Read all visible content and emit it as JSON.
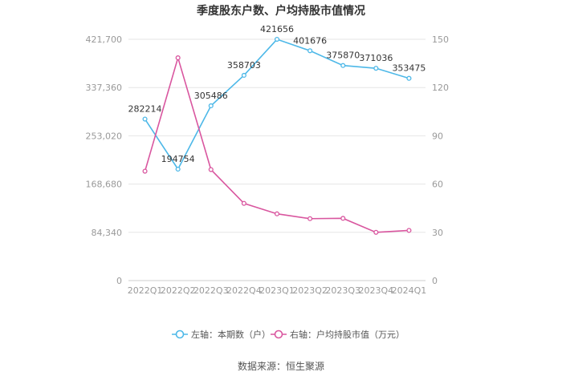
{
  "chart_data": {
    "type": "line",
    "title": "季度股东户数、户均持股市值情况",
    "categories": [
      "2022Q1",
      "2022Q2",
      "2022Q3",
      "2022Q4",
      "2023Q1",
      "2023Q2",
      "2023Q3",
      "2023Q4",
      "2024Q1"
    ],
    "left_axis": {
      "ticks": [
        "0",
        "84,340",
        "168,680",
        "253,020",
        "337,360",
        "421,700"
      ],
      "min": 0,
      "max": 421700
    },
    "right_axis": {
      "ticks": [
        "0",
        "30",
        "60",
        "90",
        "120",
        "150"
      ],
      "min": 0,
      "max": 150
    },
    "grid": true,
    "legend_position": "bottom",
    "series": [
      {
        "name": "左轴：本期数（户）",
        "axis": "left",
        "color": "#4db8e8",
        "values": [
          282214,
          194754,
          305486,
          358703,
          421656,
          401676,
          375870,
          371036,
          353475
        ],
        "labels": [
          "282214",
          "194754",
          "305486",
          "358703",
          "421656",
          "401676",
          "375870",
          "371036",
          "353475"
        ]
      },
      {
        "name": "右轴：户均持股市值（万元）",
        "axis": "right",
        "color": "#d9569f",
        "values": [
          68,
          138.5,
          69,
          48,
          41.5,
          38.5,
          38.7,
          30,
          31.2
        ]
      }
    ],
    "source": "数据来源：恒生聚源"
  }
}
